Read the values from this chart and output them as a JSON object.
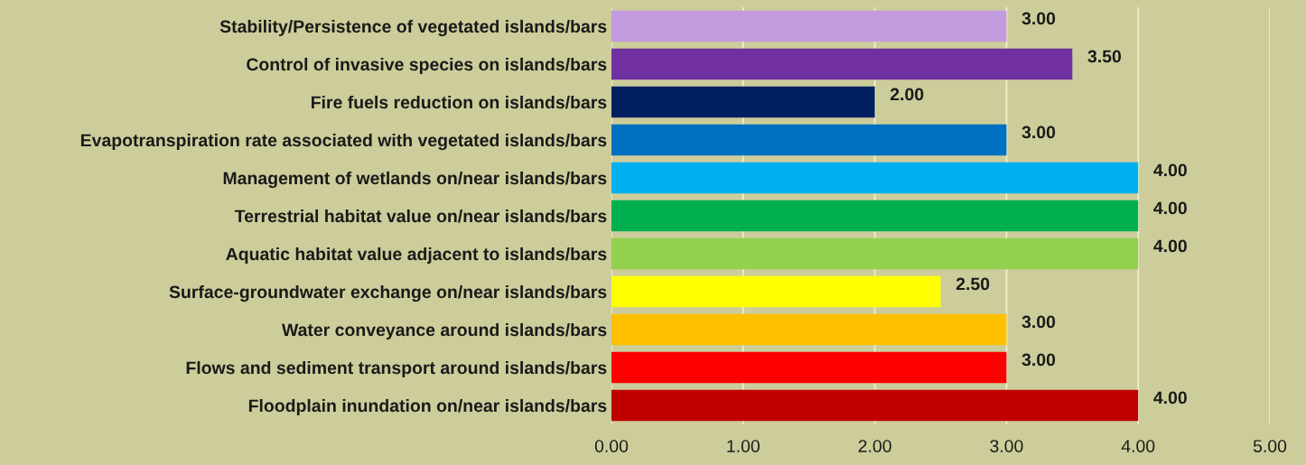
{
  "chart_data": {
    "type": "bar",
    "orientation": "horizontal",
    "categories": [
      "Stability/Persistence of vegetated islands/bars",
      "Control of invasive species on islands/bars",
      "Fire fuels reduction on islands/bars",
      "Evapotranspiration rate associated with vegetated islands/bars",
      "Management of wetlands on/near islands/bars",
      "Terrestrial habitat value on/near islands/bars",
      "Aquatic habitat value adjacent to islands/bars",
      "Surface-groundwater exchange on/near islands/bars",
      "Water conveyance around islands/bars",
      "Flows and sediment transport around islands/bars",
      "Floodplain inundation on/near islands/bars"
    ],
    "values": [
      3,
      3.5,
      2,
      3,
      4,
      4,
      4,
      2.5,
      3,
      3,
      4
    ],
    "value_labels": [
      "3.00",
      "3.50",
      "2.00",
      "3.00",
      "4.00",
      "4.00",
      "4.00",
      "2.50",
      "3.00",
      "3.00",
      "4.00"
    ],
    "colors": [
      "#c39bdf",
      "#7030a0",
      "#002060",
      "#0070c0",
      "#00b0f0",
      "#00b050",
      "#92d050",
      "#ffff00",
      "#ffc000",
      "#ff0000",
      "#c00000"
    ],
    "xlim": [
      0,
      5
    ],
    "xticks": [
      {
        "value": 0,
        "label": "0.00"
      },
      {
        "value": 1,
        "label": "1.00"
      },
      {
        "value": 2,
        "label": "2.00"
      },
      {
        "value": 3,
        "label": "3.00"
      },
      {
        "value": 4,
        "label": "4.00"
      },
      {
        "value": 5,
        "label": "5.00"
      }
    ],
    "grid": "x",
    "legend": false
  }
}
